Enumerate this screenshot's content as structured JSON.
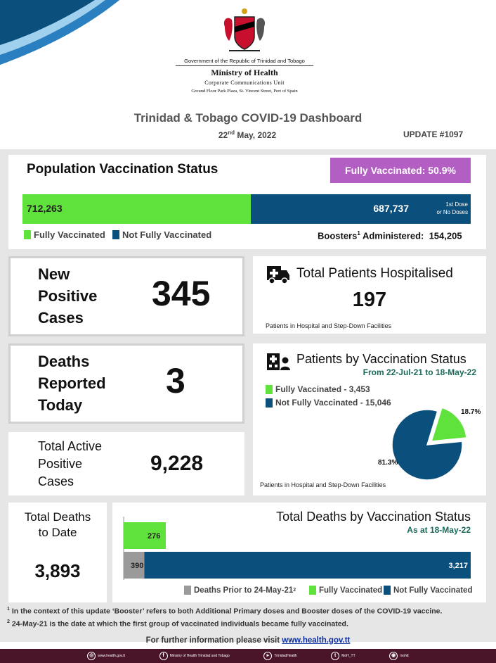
{
  "header": {
    "gov_line": "Government of the Republic of Trinidad and Tobago",
    "ministry": "Ministry of Health",
    "unit": "Corporate Communications Unit",
    "address": "Ground Floor Park Plaza, St. Vincent Street, Port of Spain",
    "dashboard_title": "Trinidad & Tobago COVID-19 Dashboard",
    "date_day": "22",
    "date_suffix": "nd",
    "date_rest": " May, 2022",
    "update": "UPDATE #1097"
  },
  "vaccination": {
    "title": "Population Vaccination Status",
    "badge": "Fully Vaccinated: 50.9%",
    "fully_value": "712,263",
    "not_fully_value": "687,737",
    "note_line1": "1st Dose",
    "note_line2": "or No Doses",
    "legend_fully": "Fully Vaccinated",
    "legend_not_fully": "Not Fully Vaccinated",
    "boosters_label": "Boosters",
    "boosters_sup": "1",
    "boosters_label_rest": " Administered:",
    "boosters_value": "154,205",
    "fully_fraction": 0.509,
    "colors": {
      "green": "#5fe23b",
      "blue": "#0b4f7c",
      "purple": "#b35ec3"
    }
  },
  "new_cases": {
    "label_1": "New",
    "label_2": "Positive",
    "label_3": "Cases",
    "value": "345"
  },
  "deaths_today": {
    "label_1": "Deaths",
    "label_2": "Reported",
    "label_3": "Today",
    "value": "3"
  },
  "active_cases": {
    "label_1": "Total Active",
    "label_2": "Positive",
    "label_3": "Cases",
    "value": "9,228"
  },
  "hospitalised": {
    "icon": "ambulance-icon",
    "title": "Total Patients Hospitalised",
    "value": "197",
    "note": "Patients in Hospital and Step-Down Facilities"
  },
  "patients_by_vax": {
    "icon": "hospital-people-icon",
    "title": "Patients by Vaccination Status",
    "subtitle": "From 22-Jul-21 to 18-May-22",
    "legend_fully": "Fully Vaccinated - 3,453",
    "legend_not_fully": "Not Fully Vaccinated - 15,046",
    "pct_fully": "18.7%",
    "pct_not_fully": "81.3%",
    "note": "Patients in Hospital and Step-Down Facilities"
  },
  "total_deaths": {
    "label_1": "Total Deaths",
    "label_2": "to Date",
    "value": "3,893"
  },
  "deaths_by_vax": {
    "title": "Total Deaths by Vaccination Status",
    "subtitle": "As at 18-May-22",
    "legend_prior": "Deaths Prior to 24-May-21",
    "legend_prior_sup": "2",
    "legend_fully": "Fully Vaccinated",
    "legend_not_fully": "Not Fully Vaccinated",
    "colors": {
      "prior": "#9a9a9a",
      "fully": "#5fe23b",
      "not_fully": "#0b4f7c"
    }
  },
  "chart_data": [
    {
      "type": "pie",
      "title": "Patients by Vaccination Status",
      "categories": [
        "Fully Vaccinated",
        "Not Fully Vaccinated"
      ],
      "values": [
        3453,
        15046
      ],
      "percent_labels": [
        "18.7%",
        "81.3%"
      ],
      "colors": [
        "#5fe23b",
        "#0b4f7c"
      ]
    },
    {
      "type": "bar",
      "orientation": "horizontal",
      "title": "Total Deaths by Vaccination Status",
      "series": [
        {
          "name": "Fully Vaccinated",
          "values": [
            276
          ]
        },
        {
          "name": "Deaths Prior to 24-May-21",
          "values": [
            390
          ]
        },
        {
          "name": "Not Fully Vaccinated",
          "values": [
            3217
          ]
        }
      ],
      "labels": {
        "fully": "276",
        "prior": "390",
        "not_fully": "3,217"
      }
    }
  ],
  "footnotes": {
    "f1_sup": "1",
    "f1": " In the context of this update ‘Booster’ refers to both Additional Primary doses and Booster doses of the COVID-19 vaccine.",
    "f2_sup": "2",
    "f2": " 24-May-21 is the date at which the first group of vaccinated individuals became fully vaccinated.",
    "further": "For further information please visit ",
    "link": "www.health.gov.tt"
  },
  "social": [
    {
      "icon": "web-icon",
      "label": "www.health.gov.tt"
    },
    {
      "icon": "facebook-icon",
      "label": "Ministry of Health Trinidad and Tobago"
    },
    {
      "icon": "youtube-icon",
      "label": "TrinidadHealth"
    },
    {
      "icon": "twitter-icon",
      "label": "MoH_TT"
    },
    {
      "icon": "instagram-icon",
      "label": "mohtt"
    }
  ]
}
